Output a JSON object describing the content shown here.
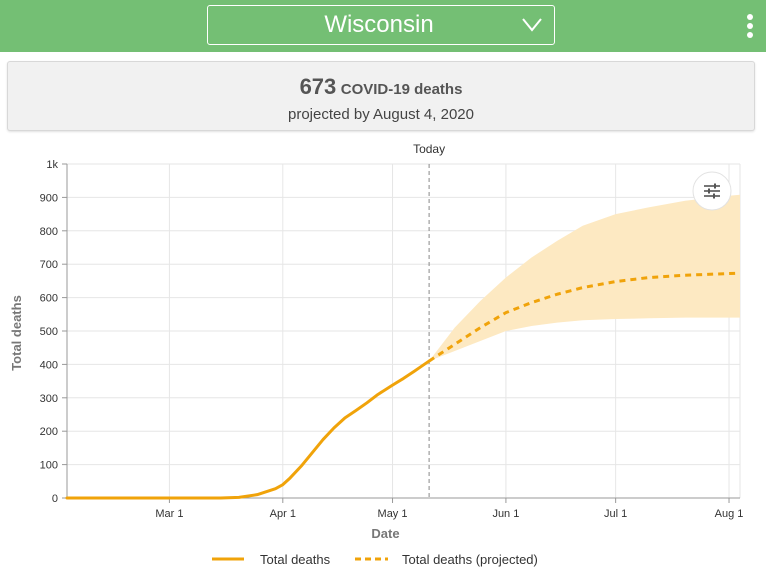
{
  "header": {
    "state": "Wisconsin",
    "dropdown_icon": "chevron-down-icon",
    "menu_icon": "kebab-menu-icon",
    "colors": {
      "bar": "#74bf74",
      "text": "#ffffff"
    }
  },
  "summary": {
    "number": "673",
    "label": "COVID-19 deaths",
    "sub": "projected by August 4, 2020"
  },
  "chart": {
    "today_label": "Today",
    "settings_icon": "sliders-icon"
  },
  "chart_data": {
    "type": "line",
    "xlabel": "Date",
    "ylabel": "Total deaths",
    "ylim": [
      0,
      1000
    ],
    "yticks": [
      "0",
      "100",
      "200",
      "300",
      "400",
      "500",
      "600",
      "700",
      "800",
      "900",
      "1k"
    ],
    "xlim": [
      "2020-02-02",
      "2020-08-04"
    ],
    "xticks": [
      {
        "date": "2020-03-01",
        "label": "Mar 1"
      },
      {
        "date": "2020-04-01",
        "label": "Apr 1"
      },
      {
        "date": "2020-05-01",
        "label": "May 1"
      },
      {
        "date": "2020-06-01",
        "label": "Jun 1"
      },
      {
        "date": "2020-07-01",
        "label": "Jul 1"
      },
      {
        "date": "2020-08-01",
        "label": "Aug 1"
      }
    ],
    "today": "2020-05-11",
    "grid": true,
    "legend_position": "bottom",
    "colors": {
      "line": "#f0a30a",
      "band": "#fde9c2"
    },
    "series": [
      {
        "name": "Total deaths",
        "style": "solid",
        "points": [
          [
            "2020-02-02",
            0
          ],
          [
            "2020-03-01",
            0
          ],
          [
            "2020-03-15",
            0
          ],
          [
            "2020-03-20",
            2
          ],
          [
            "2020-03-25",
            10
          ],
          [
            "2020-03-30",
            28
          ],
          [
            "2020-04-01",
            40
          ],
          [
            "2020-04-03",
            60
          ],
          [
            "2020-04-06",
            95
          ],
          [
            "2020-04-09",
            135
          ],
          [
            "2020-04-12",
            175
          ],
          [
            "2020-04-15",
            210
          ],
          [
            "2020-04-18",
            240
          ],
          [
            "2020-04-21",
            262
          ],
          [
            "2020-04-24",
            285
          ],
          [
            "2020-04-27",
            310
          ],
          [
            "2020-05-01",
            338
          ],
          [
            "2020-05-04",
            358
          ],
          [
            "2020-05-07",
            380
          ],
          [
            "2020-05-09",
            395
          ],
          [
            "2020-05-11",
            410
          ]
        ]
      },
      {
        "name": "Total deaths (projected)",
        "style": "dashed",
        "points": [
          [
            "2020-05-11",
            410
          ],
          [
            "2020-05-18",
            460
          ],
          [
            "2020-05-25",
            510
          ],
          [
            "2020-06-01",
            555
          ],
          [
            "2020-06-08",
            585
          ],
          [
            "2020-06-15",
            610
          ],
          [
            "2020-06-22",
            630
          ],
          [
            "2020-07-01",
            648
          ],
          [
            "2020-07-10",
            660
          ],
          [
            "2020-07-20",
            667
          ],
          [
            "2020-08-01",
            672
          ],
          [
            "2020-08-04",
            673
          ]
        ]
      }
    ],
    "uncertainty_band": {
      "upper": [
        [
          "2020-05-11",
          410
        ],
        [
          "2020-05-18",
          510
        ],
        [
          "2020-05-25",
          590
        ],
        [
          "2020-06-01",
          660
        ],
        [
          "2020-06-08",
          720
        ],
        [
          "2020-06-15",
          770
        ],
        [
          "2020-06-22",
          815
        ],
        [
          "2020-07-01",
          850
        ],
        [
          "2020-07-10",
          870
        ],
        [
          "2020-07-20",
          890
        ],
        [
          "2020-08-01",
          905
        ],
        [
          "2020-08-04",
          908
        ]
      ],
      "lower": [
        [
          "2020-05-11",
          410
        ],
        [
          "2020-05-18",
          440
        ],
        [
          "2020-05-25",
          470
        ],
        [
          "2020-06-01",
          500
        ],
        [
          "2020-06-08",
          515
        ],
        [
          "2020-06-15",
          525
        ],
        [
          "2020-06-22",
          532
        ],
        [
          "2020-07-01",
          536
        ],
        [
          "2020-07-10",
          538
        ],
        [
          "2020-07-20",
          540
        ],
        [
          "2020-08-01",
          540
        ],
        [
          "2020-08-04",
          540
        ]
      ]
    }
  }
}
